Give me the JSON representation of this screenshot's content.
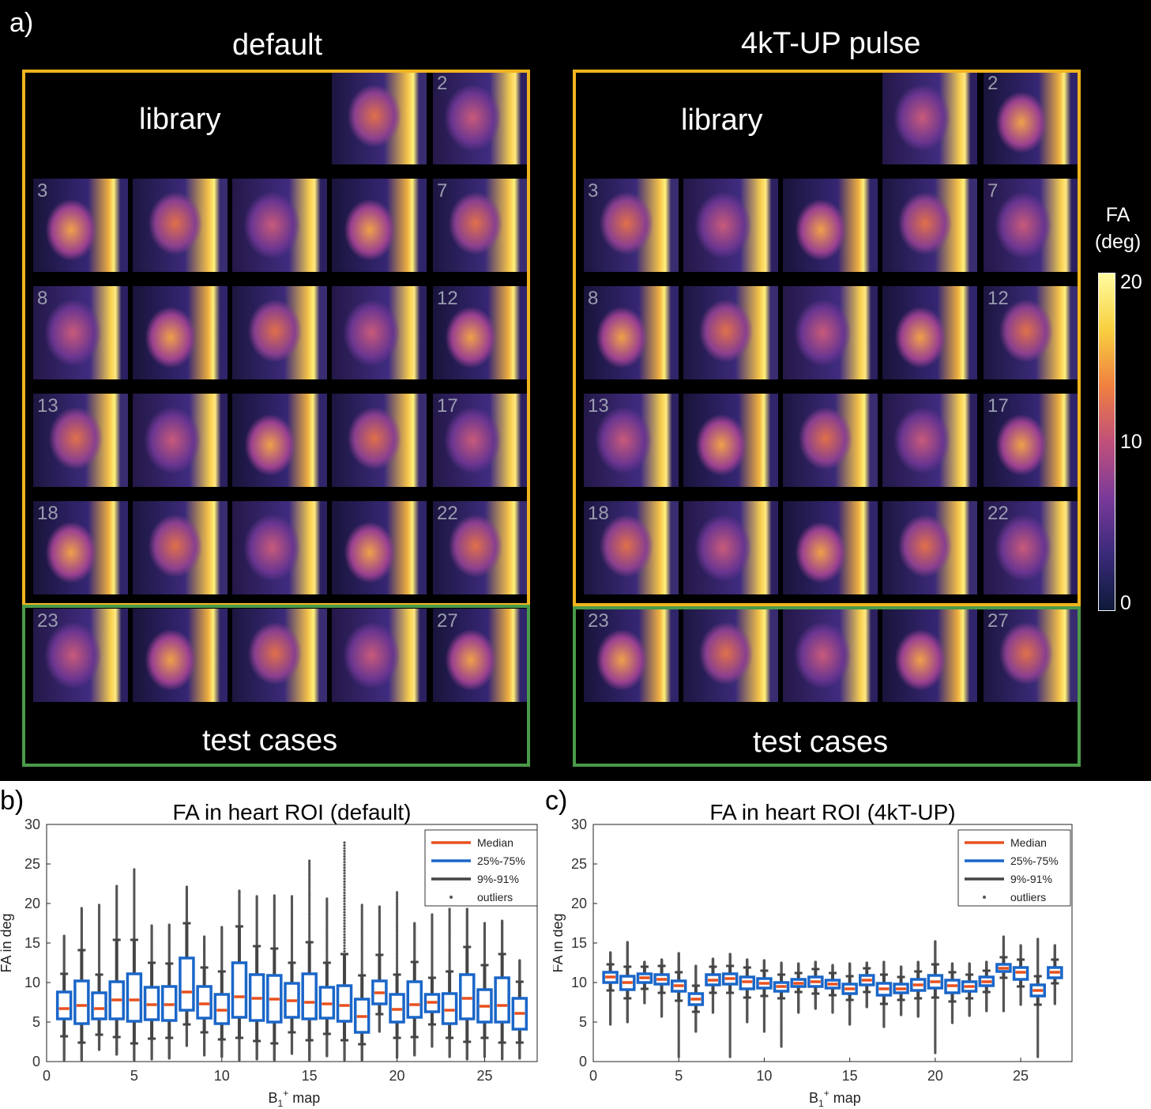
{
  "panel_a": {
    "label": "a)",
    "titles": [
      "default",
      "4kT-UP pulse"
    ],
    "library_label": "library",
    "test_label": "test cases",
    "tile_numbers": [
      "2",
      "3",
      "7",
      "8",
      "12",
      "13",
      "17",
      "18",
      "22",
      "23",
      "27"
    ],
    "colorbar": {
      "label_line1": "FA",
      "label_line2": "(deg)",
      "ticks": [
        "20",
        "10",
        "0"
      ],
      "range": [
        0,
        20
      ],
      "colors": [
        "#0d1a3a",
        "#3a2a7a",
        "#7a3a9a",
        "#c0507a",
        "#f08040",
        "#f8d040",
        "#fffca0"
      ]
    },
    "colors": {
      "library_frame": "#f0b41e",
      "test_frame": "#4a9a4a"
    }
  },
  "panel_b": {
    "label": "b)",
    "title": "FA in heart ROI (default)",
    "ylabel": "FA in deg",
    "xlabel_main": "B",
    "xlabel_sub": "1",
    "xlabel_sup": "+",
    "xlabel_rest": " map",
    "xticks": [
      "0",
      "5",
      "10",
      "15",
      "20",
      "25"
    ],
    "yticks": [
      "0",
      "5",
      "10",
      "15",
      "20",
      "25",
      "30"
    ],
    "legend": [
      "Median",
      "25%-75%",
      "9%-91%",
      "outliers"
    ]
  },
  "panel_c": {
    "label": "c)",
    "title": "FA in heart ROI (4kT-UP)",
    "ylabel": "FA in deg",
    "xlabel_main": "B",
    "xlabel_sub": "1",
    "xlabel_sup": "+",
    "xlabel_rest": " map",
    "xticks": [
      "0",
      "5",
      "10",
      "15",
      "20",
      "25"
    ],
    "yticks": [
      "0",
      "5",
      "10",
      "15",
      "20",
      "25",
      "30"
    ],
    "legend": [
      "Median",
      "25%-75%",
      "9%-91%",
      "outliers"
    ]
  },
  "chart_data": [
    {
      "type": "box",
      "title": "FA in heart ROI (default)",
      "xlabel": "B1+ map",
      "ylabel": "FA in deg",
      "xlim": [
        0,
        28
      ],
      "ylim": [
        0,
        30
      ],
      "x": [
        1,
        2,
        3,
        4,
        5,
        6,
        7,
        8,
        9,
        10,
        11,
        12,
        13,
        14,
        15,
        16,
        17,
        18,
        19,
        20,
        21,
        22,
        23,
        24,
        25,
        26,
        27
      ],
      "median": [
        6.7,
        7.1,
        6.7,
        7.8,
        7.8,
        7.2,
        7.2,
        8.8,
        7.3,
        6.5,
        8.2,
        8.0,
        7.9,
        7.7,
        7.5,
        7.3,
        7.1,
        5.7,
        8.7,
        6.6,
        7.2,
        7.5,
        6.5,
        8.0,
        7.0,
        7.1,
        6.1
      ],
      "q1": [
        5.4,
        4.8,
        5.4,
        5.4,
        5.1,
        5.3,
        5.2,
        6.5,
        5.5,
        4.8,
        5.6,
        5.2,
        5.0,
        5.6,
        5.4,
        5.5,
        5.1,
        3.7,
        7.3,
        5.0,
        5.6,
        6.3,
        4.8,
        5.4,
        5.0,
        5.0,
        4.1
      ],
      "q3": [
        8.8,
        10.2,
        8.7,
        10.1,
        11.1,
        9.4,
        9.5,
        13.1,
        9.5,
        8.5,
        12.5,
        11.0,
        10.9,
        9.9,
        11.1,
        9.4,
        9.6,
        7.9,
        10.2,
        8.5,
        10.1,
        8.5,
        8.6,
        11.0,
        9.1,
        10.6,
        8.0
      ],
      "p9": [
        3.2,
        2.4,
        3.4,
        3.1,
        2.3,
        2.9,
        3.0,
        4.7,
        3.7,
        2.8,
        3.0,
        2.6,
        2.3,
        3.7,
        2.7,
        3.5,
        2.7,
        2.2,
        6.0,
        3.0,
        3.1,
        4.7,
        3.0,
        2.5,
        3.0,
        2.4,
        2.4
      ],
      "p91": [
        11.1,
        14.1,
        11.0,
        15.4,
        15.4,
        12.5,
        12.4,
        17.5,
        11.9,
        11.4,
        17.1,
        14.6,
        14.3,
        12.5,
        15.1,
        12.5,
        13.6,
        10.9,
        13.5,
        11.0,
        12.6,
        10.6,
        11.4,
        14.5,
        12.2,
        13.6,
        10.1
      ],
      "outlier_max": [
        15.9,
        19.4,
        19.8,
        22.2,
        24.3,
        17.2,
        17.3,
        22.1,
        15.8,
        17.0,
        21.6,
        20.9,
        21.0,
        20.9,
        25.4,
        20.6,
        27.7,
        19.8,
        19.6,
        21.4,
        17.5,
        18.6,
        19.3,
        19.3,
        17.5,
        17.8,
        12.8
      ],
      "outlier_min": [
        0.2,
        0.2,
        1.5,
        0.9,
        0.2,
        0.3,
        0.4,
        2.0,
        0.8,
        0.6,
        0.2,
        0.3,
        0.2,
        1.0,
        0.2,
        0.7,
        0.2,
        0.2,
        3.8,
        0.5,
        0.8,
        1.9,
        0.6,
        0.3,
        0.6,
        0.3,
        0.4
      ]
    },
    {
      "type": "box",
      "title": "FA in heart ROI (4kT-UP)",
      "xlabel": "B1+ map",
      "ylabel": "FA in deg",
      "xlim": [
        0,
        28
      ],
      "ylim": [
        0,
        30
      ],
      "x": [
        1,
        2,
        3,
        4,
        5,
        6,
        7,
        8,
        9,
        10,
        11,
        12,
        13,
        14,
        15,
        16,
        17,
        18,
        19,
        20,
        21,
        22,
        23,
        24,
        25,
        26,
        27
      ],
      "median": [
        10.7,
        10.0,
        10.6,
        10.4,
        9.6,
        7.9,
        10.3,
        10.5,
        10.1,
        9.9,
        9.5,
        9.9,
        10.1,
        9.8,
        9.2,
        10.3,
        9.2,
        9.2,
        9.7,
        10.1,
        9.6,
        9.5,
        10.1,
        11.8,
        11.3,
        9.0,
        11.3
      ],
      "q1": [
        10.0,
        9.1,
        10.0,
        9.8,
        8.9,
        7.2,
        9.7,
        9.8,
        9.2,
        9.3,
        8.9,
        9.5,
        9.5,
        9.3,
        8.6,
        9.7,
        8.4,
        8.7,
        9.0,
        9.3,
        8.7,
        8.9,
        9.6,
        11.4,
        10.4,
        8.3,
        10.6
      ],
      "q3": [
        11.3,
        10.8,
        11.1,
        11.0,
        10.2,
        8.6,
        11.0,
        11.1,
        10.7,
        10.5,
        10.0,
        10.4,
        10.7,
        10.3,
        9.8,
        10.9,
        9.9,
        9.8,
        10.4,
        10.9,
        10.3,
        10.1,
        10.7,
        12.3,
        11.9,
        9.7,
        11.9
      ],
      "p9": [
        9.0,
        8.0,
        9.2,
        8.7,
        7.7,
        6.3,
        8.7,
        8.7,
        8.1,
        8.3,
        8.0,
        8.8,
        8.6,
        8.4,
        7.8,
        8.8,
        7.3,
        7.8,
        8.0,
        8.1,
        7.6,
        8.0,
        8.8,
        10.6,
        9.5,
        7.2,
        9.9
      ],
      "p91": [
        12.3,
        12.0,
        12.0,
        12.1,
        11.3,
        9.6,
        12.0,
        12.1,
        11.9,
        11.5,
        11.0,
        11.2,
        11.7,
        11.2,
        10.8,
        11.8,
        11.0,
        10.7,
        11.4,
        12.3,
        11.3,
        11.0,
        11.5,
        13.2,
        12.9,
        10.8,
        12.9
      ],
      "outlier_max": [
        13.8,
        15.1,
        12.6,
        12.9,
        13.7,
        12.1,
        13.0,
        13.6,
        12.9,
        12.8,
        12.5,
        12.4,
        12.6,
        12.2,
        12.4,
        12.5,
        12.6,
        12.0,
        12.6,
        15.2,
        12.4,
        12.4,
        12.6,
        15.8,
        14.7,
        15.5,
        14.7
      ],
      "outlier_min": [
        4.7,
        5.0,
        7.4,
        5.7,
        0.6,
        3.8,
        6.2,
        0.6,
        5.0,
        3.8,
        1.9,
        6.2,
        6.7,
        6.2,
        4.7,
        6.9,
        4.4,
        5.9,
        5.7,
        1.1,
        4.9,
        5.8,
        6.4,
        6.4,
        7.2,
        0.6,
        7.3
      ]
    }
  ]
}
